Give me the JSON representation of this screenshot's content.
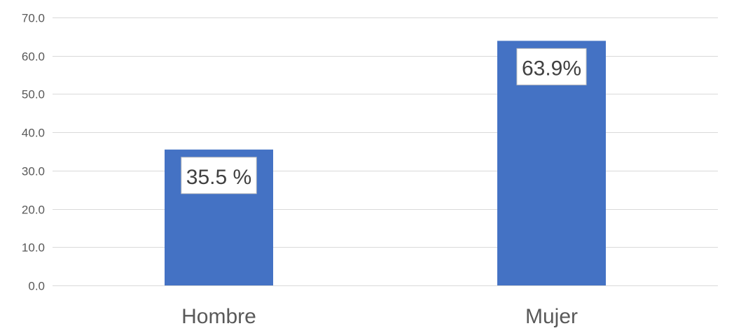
{
  "chart_data": {
    "type": "bar",
    "categories": [
      "Hombre",
      "Mujer"
    ],
    "values": [
      35.5,
      63.9
    ],
    "data_labels": [
      "35.5 %",
      "63.9%"
    ],
    "yticks": [
      "0.0",
      "10.0",
      "20.0",
      "30.0",
      "40.0",
      "50.0",
      "60.0",
      "70.0"
    ],
    "ylim": [
      0,
      70
    ],
    "grid": true,
    "legend": "none",
    "bar_color": "#4472C4",
    "grid_color": "#D9D9D9",
    "title": "",
    "xlabel": "",
    "ylabel": ""
  }
}
